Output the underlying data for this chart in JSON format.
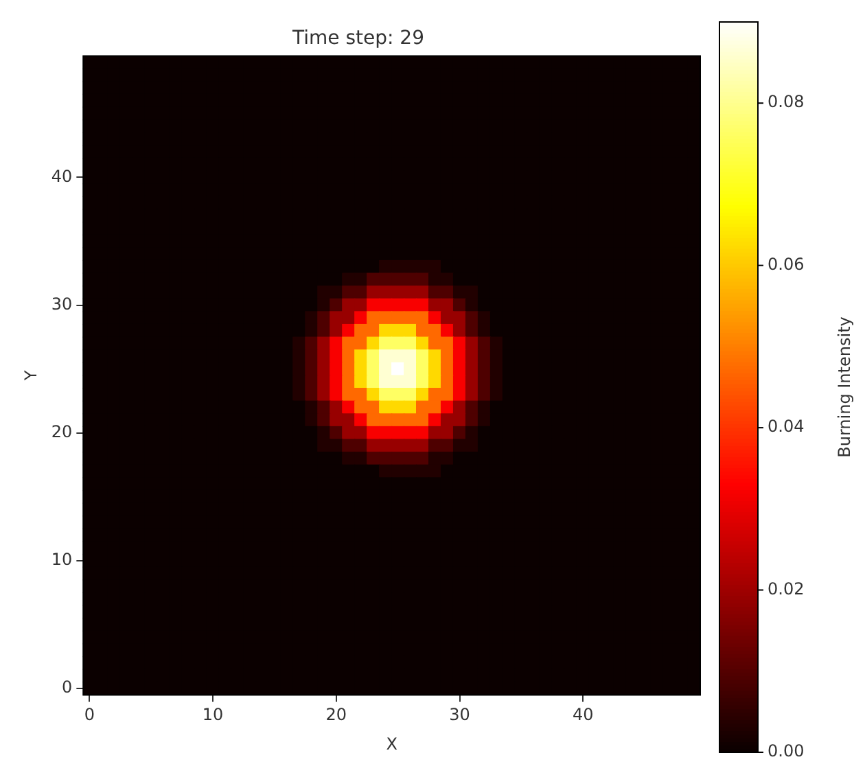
{
  "chart_data": {
    "type": "heatmap",
    "title": "Time step: 29",
    "xlabel": "X",
    "ylabel": "Y",
    "clabel": "Burning Intensity",
    "categories": [
      "0",
      null,
      null,
      null,
      null,
      null,
      null,
      null,
      null,
      null,
      "10",
      null,
      null,
      null,
      null,
      null,
      null,
      null,
      null,
      null,
      "20",
      null,
      null,
      null,
      null,
      null,
      null,
      null,
      null,
      null,
      "30",
      null,
      null,
      null,
      null,
      null,
      null,
      null,
      null,
      null,
      "40",
      null,
      null,
      null,
      null,
      null,
      null,
      null,
      null,
      null
    ],
    "y_categories": [
      null,
      null,
      null,
      null,
      null,
      null,
      null,
      null,
      null,
      "40",
      null,
      null,
      null,
      null,
      null,
      null,
      null,
      null,
      null,
      "30",
      null,
      null,
      null,
      null,
      null,
      null,
      null,
      null,
      null,
      "20",
      null,
      null,
      null,
      null,
      null,
      null,
      null,
      null,
      null,
      "10",
      null,
      null,
      null,
      null,
      null,
      null,
      null,
      null,
      null,
      "0"
    ],
    "clim": [
      0,
      0.09
    ],
    "cticks": [
      {
        "value": 0,
        "label": "0.00"
      },
      {
        "value": 0.02,
        "label": "0.02"
      },
      {
        "value": 0.04,
        "label": "0.04"
      },
      {
        "value": 0.06,
        "label": "0.06"
      },
      {
        "value": 0.08,
        "label": "0.08"
      }
    ],
    "cells": [
      [
        0,
        0,
        0,
        0,
        0,
        0,
        0,
        0,
        0,
        0,
        0,
        0,
        0,
        0,
        0,
        0,
        0,
        0,
        0,
        0,
        0,
        0,
        0,
        0,
        0,
        0,
        0,
        0,
        0,
        0,
        0,
        0,
        0,
        0,
        0,
        0,
        0,
        0,
        0,
        0,
        0,
        0,
        0,
        0,
        0,
        0,
        0,
        0,
        0,
        0
      ],
      [
        0,
        0,
        0,
        0,
        0,
        0,
        0,
        0,
        0,
        0,
        0,
        0,
        0,
        0,
        0,
        0,
        0,
        0,
        0,
        0,
        0,
        0,
        0,
        0,
        0,
        0,
        0,
        0,
        0,
        0,
        0,
        0,
        0,
        0,
        0,
        0,
        0,
        0,
        0,
        0,
        0,
        0,
        0,
        0,
        0,
        0,
        0,
        0,
        0,
        0
      ],
      [
        0,
        0,
        0,
        0,
        0,
        0,
        0,
        0,
        0,
        0,
        0,
        0,
        0,
        0,
        0,
        0,
        0,
        0,
        0,
        0,
        0,
        0,
        0,
        0,
        0,
        0,
        0,
        0,
        0,
        0,
        0,
        0,
        0,
        0,
        0,
        0,
        0,
        0,
        0,
        0,
        0,
        0,
        0,
        0,
        0,
        0,
        0,
        0,
        0,
        0
      ],
      [
        0,
        0,
        0,
        0,
        0,
        0,
        0,
        0,
        0,
        0,
        0,
        0,
        0,
        0,
        0,
        0,
        0,
        0,
        0,
        0,
        0,
        0,
        0,
        0,
        0,
        0,
        0,
        0,
        0,
        0,
        0,
        0,
        0,
        0,
        0,
        0,
        0,
        0,
        0,
        0,
        0,
        0,
        0,
        0,
        0,
        0,
        0,
        0,
        0,
        0
      ],
      [
        0,
        0,
        0,
        0,
        0,
        0,
        0,
        0,
        0,
        0,
        0,
        0,
        0,
        0,
        0,
        0,
        0,
        0,
        0,
        0,
        0,
        0,
        0,
        0,
        0,
        0,
        0,
        0,
        0,
        0,
        0,
        0,
        0,
        0,
        0,
        0,
        0,
        0,
        0,
        0,
        0,
        0,
        0,
        0,
        0,
        0,
        0,
        0,
        0,
        0
      ],
      [
        0,
        0,
        0,
        0,
        0,
        0,
        0,
        0,
        0,
        0,
        0,
        0,
        0,
        0,
        0,
        0,
        0,
        0,
        0,
        0,
        0,
        0,
        0,
        0,
        0,
        0,
        0,
        0,
        0,
        0,
        0,
        0,
        0,
        0,
        0,
        0,
        0,
        0,
        0,
        0,
        0,
        0,
        0,
        0,
        0,
        0,
        0,
        0,
        0,
        0
      ],
      [
        0,
        0,
        0,
        0,
        0,
        0,
        0,
        0,
        0,
        0,
        0,
        0,
        0,
        0,
        0,
        0,
        0,
        0,
        0,
        0,
        0,
        0,
        0,
        0,
        0,
        0,
        0,
        0,
        0,
        0,
        0,
        0,
        0,
        0,
        0,
        0,
        0,
        0,
        0,
        0,
        0,
        0,
        0,
        0,
        0,
        0,
        0,
        0,
        0,
        0
      ],
      [
        0,
        0,
        0,
        0,
        0,
        0,
        0,
        0,
        0,
        0,
        0,
        0,
        0,
        0,
        0,
        0,
        0,
        0,
        0,
        0,
        0,
        0,
        0,
        0,
        0,
        0,
        0,
        0,
        0,
        0,
        0,
        0,
        0,
        0,
        0,
        0,
        0,
        0,
        0,
        0,
        0,
        0,
        0,
        0,
        0,
        0,
        0,
        0,
        0,
        0
      ],
      [
        0,
        0,
        0,
        0,
        0,
        0,
        0,
        0,
        0,
        0,
        0,
        0,
        0,
        0,
        0,
        0,
        0,
        0,
        0,
        0,
        0,
        0,
        0,
        0,
        0,
        0,
        0,
        0,
        0,
        0,
        0,
        0,
        0,
        0,
        0,
        0,
        0,
        0,
        0,
        0,
        0,
        0,
        0,
        0,
        0,
        0,
        0,
        0,
        0,
        0
      ],
      [
        0,
        0,
        0,
        0,
        0,
        0,
        0,
        0,
        0,
        0,
        0,
        0,
        0,
        0,
        0,
        0,
        0,
        0,
        0,
        0,
        0,
        0,
        0,
        0,
        0,
        0,
        0,
        0,
        0,
        0,
        0,
        0,
        0,
        0,
        0,
        0,
        0,
        0,
        0,
        0,
        0,
        0,
        0,
        0,
        0,
        0,
        0,
        0,
        0,
        0
      ],
      [
        0,
        0,
        0,
        0,
        0,
        0,
        0,
        0,
        0,
        0,
        0,
        0,
        0,
        0,
        0,
        0,
        0,
        0,
        0,
        0,
        0,
        0,
        0,
        0,
        0,
        0,
        0,
        0,
        0,
        0,
        0,
        0,
        0,
        0,
        0,
        0,
        0,
        0,
        0,
        0,
        0,
        0,
        0,
        0,
        0,
        0,
        0,
        0,
        0,
        0
      ],
      [
        0,
        0,
        0,
        0,
        0,
        0,
        0,
        0,
        0,
        0,
        0,
        0,
        0,
        0,
        0,
        0,
        0,
        0,
        0,
        0,
        0,
        0,
        0,
        0,
        0,
        0,
        0,
        0,
        0,
        0,
        0,
        0,
        0,
        0,
        0,
        0,
        0,
        0,
        0,
        0,
        0,
        0,
        0,
        0,
        0,
        0,
        0,
        0,
        0,
        0
      ],
      [
        0,
        0,
        0,
        0,
        0,
        0,
        0,
        0,
        0,
        0,
        0,
        0,
        0,
        0,
        0,
        0,
        0,
        0,
        0,
        0,
        0,
        0,
        0,
        0,
        0,
        0,
        0,
        0,
        0,
        0,
        0,
        0,
        0,
        0,
        0,
        0,
        0,
        0,
        0,
        0,
        0,
        0,
        0,
        0,
        0,
        0,
        0,
        0,
        0,
        0
      ],
      [
        0,
        0,
        0,
        0,
        0,
        0,
        0,
        0,
        0,
        0,
        0,
        0,
        0,
        0,
        0,
        0,
        0,
        0,
        0,
        0,
        0,
        0,
        0,
        0,
        0,
        0,
        0,
        0,
        0,
        0,
        0,
        0,
        0,
        0,
        0,
        0,
        0,
        0,
        0,
        0,
        0,
        0,
        0,
        0,
        0,
        0,
        0,
        0,
        0,
        0
      ],
      [
        0,
        0,
        0,
        0,
        0,
        0,
        0,
        0,
        0,
        0,
        0,
        0,
        0,
        0,
        0,
        0,
        0,
        0,
        0,
        0,
        0,
        0,
        0,
        0,
        0,
        0,
        0,
        0,
        0,
        0,
        0,
        0,
        0,
        0,
        0,
        0,
        0,
        0,
        0,
        0,
        0,
        0,
        0,
        0,
        0,
        0,
        0,
        0,
        0,
        0
      ],
      [
        0,
        0,
        0,
        0,
        0,
        0,
        0,
        0,
        0,
        0,
        0,
        0,
        0,
        0,
        0,
        0,
        0,
        0,
        0,
        0,
        0,
        0,
        0,
        0,
        0,
        0,
        0,
        0,
        0,
        0,
        0,
        0,
        0,
        0,
        0,
        0,
        0,
        0,
        0,
        0,
        0,
        0,
        0,
        0,
        0,
        0,
        0,
        0,
        0,
        0
      ],
      [
        0,
        0,
        0,
        0,
        0,
        0,
        0,
        0,
        0,
        0,
        0,
        0,
        0,
        0,
        0,
        0,
        0,
        0,
        0,
        0,
        0,
        0,
        0,
        0,
        0.003,
        0.003,
        0.003,
        0.003,
        0.003,
        0,
        0,
        0,
        0,
        0,
        0,
        0,
        0,
        0,
        0,
        0,
        0,
        0,
        0,
        0,
        0,
        0,
        0,
        0,
        0,
        0
      ],
      [
        0,
        0,
        0,
        0,
        0,
        0,
        0,
        0,
        0,
        0,
        0,
        0,
        0,
        0,
        0,
        0,
        0,
        0,
        0,
        0,
        0,
        0.003,
        0.003,
        0.009,
        0.009,
        0.009,
        0.009,
        0.009,
        0.003,
        0.003,
        0,
        0,
        0,
        0,
        0,
        0,
        0,
        0,
        0,
        0,
        0,
        0,
        0,
        0,
        0,
        0,
        0,
        0,
        0,
        0
      ],
      [
        0,
        0,
        0,
        0,
        0,
        0,
        0,
        0,
        0,
        0,
        0,
        0,
        0,
        0,
        0,
        0,
        0,
        0,
        0,
        0.003,
        0.003,
        0.009,
        0.009,
        0.019,
        0.019,
        0.019,
        0.019,
        0.019,
        0.009,
        0.009,
        0.003,
        0.003,
        0,
        0,
        0,
        0,
        0,
        0,
        0,
        0,
        0,
        0,
        0,
        0,
        0,
        0,
        0,
        0,
        0,
        0
      ],
      [
        0,
        0,
        0,
        0,
        0,
        0,
        0,
        0,
        0,
        0,
        0,
        0,
        0,
        0,
        0,
        0,
        0,
        0,
        0,
        0.003,
        0.009,
        0.019,
        0.019,
        0.032,
        0.032,
        0.032,
        0.032,
        0.032,
        0.019,
        0.019,
        0.009,
        0.003,
        0,
        0,
        0,
        0,
        0,
        0,
        0,
        0,
        0,
        0,
        0,
        0,
        0,
        0,
        0,
        0,
        0,
        0
      ],
      [
        0,
        0,
        0,
        0,
        0,
        0,
        0,
        0,
        0,
        0,
        0,
        0,
        0,
        0,
        0,
        0,
        0,
        0,
        0.003,
        0.009,
        0.019,
        0.019,
        0.032,
        0.047,
        0.047,
        0.047,
        0.047,
        0.047,
        0.032,
        0.019,
        0.019,
        0.009,
        0.003,
        0,
        0,
        0,
        0,
        0,
        0,
        0,
        0,
        0,
        0,
        0,
        0,
        0,
        0,
        0,
        0,
        0
      ],
      [
        0,
        0,
        0,
        0,
        0,
        0,
        0,
        0,
        0,
        0,
        0,
        0,
        0,
        0,
        0,
        0,
        0,
        0,
        0.003,
        0.009,
        0.019,
        0.032,
        0.047,
        0.047,
        0.062,
        0.062,
        0.062,
        0.047,
        0.047,
        0.032,
        0.019,
        0.009,
        0.003,
        0,
        0,
        0,
        0,
        0,
        0,
        0,
        0,
        0,
        0,
        0,
        0,
        0,
        0,
        0,
        0,
        0
      ],
      [
        0,
        0,
        0,
        0,
        0,
        0,
        0,
        0,
        0,
        0,
        0,
        0,
        0,
        0,
        0,
        0,
        0,
        0.003,
        0.009,
        0.019,
        0.032,
        0.047,
        0.047,
        0.062,
        0.076,
        0.076,
        0.076,
        0.062,
        0.047,
        0.047,
        0.032,
        0.019,
        0.009,
        0.003,
        0,
        0,
        0,
        0,
        0,
        0,
        0,
        0,
        0,
        0,
        0,
        0,
        0,
        0,
        0,
        0
      ],
      [
        0,
        0,
        0,
        0,
        0,
        0,
        0,
        0,
        0,
        0,
        0,
        0,
        0,
        0,
        0,
        0,
        0,
        0.003,
        0.009,
        0.019,
        0.032,
        0.047,
        0.062,
        0.076,
        0.086,
        0.086,
        0.086,
        0.076,
        0.062,
        0.047,
        0.032,
        0.019,
        0.009,
        0.003,
        0,
        0,
        0,
        0,
        0,
        0,
        0,
        0,
        0,
        0,
        0,
        0,
        0,
        0,
        0,
        0
      ],
      [
        0,
        0,
        0,
        0,
        0,
        0,
        0,
        0,
        0,
        0,
        0,
        0,
        0,
        0,
        0,
        0,
        0,
        0.003,
        0.009,
        0.019,
        0.032,
        0.047,
        0.062,
        0.076,
        0.086,
        0.09,
        0.086,
        0.076,
        0.062,
        0.047,
        0.032,
        0.019,
        0.009,
        0.003,
        0,
        0,
        0,
        0,
        0,
        0,
        0,
        0,
        0,
        0,
        0,
        0,
        0,
        0,
        0,
        0
      ],
      [
        0,
        0,
        0,
        0,
        0,
        0,
        0,
        0,
        0,
        0,
        0,
        0,
        0,
        0,
        0,
        0,
        0,
        0.003,
        0.009,
        0.019,
        0.032,
        0.047,
        0.062,
        0.076,
        0.086,
        0.086,
        0.086,
        0.076,
        0.062,
        0.047,
        0.032,
        0.019,
        0.009,
        0.003,
        0,
        0,
        0,
        0,
        0,
        0,
        0,
        0,
        0,
        0,
        0,
        0,
        0,
        0,
        0,
        0
      ],
      [
        0,
        0,
        0,
        0,
        0,
        0,
        0,
        0,
        0,
        0,
        0,
        0,
        0,
        0,
        0,
        0,
        0,
        0.003,
        0.009,
        0.019,
        0.032,
        0.047,
        0.047,
        0.062,
        0.076,
        0.076,
        0.076,
        0.062,
        0.047,
        0.047,
        0.032,
        0.019,
        0.009,
        0.003,
        0,
        0,
        0,
        0,
        0,
        0,
        0,
        0,
        0,
        0,
        0,
        0,
        0,
        0,
        0,
        0
      ],
      [
        0,
        0,
        0,
        0,
        0,
        0,
        0,
        0,
        0,
        0,
        0,
        0,
        0,
        0,
        0,
        0,
        0,
        0,
        0.003,
        0.009,
        0.019,
        0.032,
        0.047,
        0.047,
        0.062,
        0.062,
        0.062,
        0.047,
        0.047,
        0.032,
        0.019,
        0.009,
        0.003,
        0,
        0,
        0,
        0,
        0,
        0,
        0,
        0,
        0,
        0,
        0,
        0,
        0,
        0,
        0,
        0,
        0
      ],
      [
        0,
        0,
        0,
        0,
        0,
        0,
        0,
        0,
        0,
        0,
        0,
        0,
        0,
        0,
        0,
        0,
        0,
        0,
        0.003,
        0.009,
        0.019,
        0.019,
        0.032,
        0.047,
        0.047,
        0.047,
        0.047,
        0.047,
        0.032,
        0.019,
        0.019,
        0.009,
        0.003,
        0,
        0,
        0,
        0,
        0,
        0,
        0,
        0,
        0,
        0,
        0,
        0,
        0,
        0,
        0,
        0,
        0
      ],
      [
        0,
        0,
        0,
        0,
        0,
        0,
        0,
        0,
        0,
        0,
        0,
        0,
        0,
        0,
        0,
        0,
        0,
        0,
        0,
        0.003,
        0.009,
        0.019,
        0.019,
        0.032,
        0.032,
        0.032,
        0.032,
        0.032,
        0.019,
        0.019,
        0.009,
        0.003,
        0,
        0,
        0,
        0,
        0,
        0,
        0,
        0,
        0,
        0,
        0,
        0,
        0,
        0,
        0,
        0,
        0,
        0
      ],
      [
        0,
        0,
        0,
        0,
        0,
        0,
        0,
        0,
        0,
        0,
        0,
        0,
        0,
        0,
        0,
        0,
        0,
        0,
        0,
        0.003,
        0.003,
        0.009,
        0.009,
        0.019,
        0.019,
        0.019,
        0.019,
        0.019,
        0.009,
        0.009,
        0.003,
        0.003,
        0,
        0,
        0,
        0,
        0,
        0,
        0,
        0,
        0,
        0,
        0,
        0,
        0,
        0,
        0,
        0,
        0,
        0
      ],
      [
        0,
        0,
        0,
        0,
        0,
        0,
        0,
        0,
        0,
        0,
        0,
        0,
        0,
        0,
        0,
        0,
        0,
        0,
        0,
        0,
        0,
        0.003,
        0.003,
        0.009,
        0.009,
        0.009,
        0.009,
        0.009,
        0.003,
        0.003,
        0,
        0,
        0,
        0,
        0,
        0,
        0,
        0,
        0,
        0,
        0,
        0,
        0,
        0,
        0,
        0,
        0,
        0,
        0,
        0
      ],
      [
        0,
        0,
        0,
        0,
        0,
        0,
        0,
        0,
        0,
        0,
        0,
        0,
        0,
        0,
        0,
        0,
        0,
        0,
        0,
        0,
        0,
        0,
        0,
        0,
        0.003,
        0.003,
        0.003,
        0.003,
        0.003,
        0,
        0,
        0,
        0,
        0,
        0,
        0,
        0,
        0,
        0,
        0,
        0,
        0,
        0,
        0,
        0,
        0,
        0,
        0,
        0,
        0
      ],
      [
        0,
        0,
        0,
        0,
        0,
        0,
        0,
        0,
        0,
        0,
        0,
        0,
        0,
        0,
        0,
        0,
        0,
        0,
        0,
        0,
        0,
        0,
        0,
        0,
        0,
        0,
        0,
        0,
        0,
        0,
        0,
        0,
        0,
        0,
        0,
        0,
        0,
        0,
        0,
        0,
        0,
        0,
        0,
        0,
        0,
        0,
        0,
        0,
        0,
        0
      ],
      [
        0,
        0,
        0,
        0,
        0,
        0,
        0,
        0,
        0,
        0,
        0,
        0,
        0,
        0,
        0,
        0,
        0,
        0,
        0,
        0,
        0,
        0,
        0,
        0,
        0,
        0,
        0,
        0,
        0,
        0,
        0,
        0,
        0,
        0,
        0,
        0,
        0,
        0,
        0,
        0,
        0,
        0,
        0,
        0,
        0,
        0,
        0,
        0,
        0,
        0
      ],
      [
        0,
        0,
        0,
        0,
        0,
        0,
        0,
        0,
        0,
        0,
        0,
        0,
        0,
        0,
        0,
        0,
        0,
        0,
        0,
        0,
        0,
        0,
        0,
        0,
        0,
        0,
        0,
        0,
        0,
        0,
        0,
        0,
        0,
        0,
        0,
        0,
        0,
        0,
        0,
        0,
        0,
        0,
        0,
        0,
        0,
        0,
        0,
        0,
        0,
        0
      ],
      [
        0,
        0,
        0,
        0,
        0,
        0,
        0,
        0,
        0,
        0,
        0,
        0,
        0,
        0,
        0,
        0,
        0,
        0,
        0,
        0,
        0,
        0,
        0,
        0,
        0,
        0,
        0,
        0,
        0,
        0,
        0,
        0,
        0,
        0,
        0,
        0,
        0,
        0,
        0,
        0,
        0,
        0,
        0,
        0,
        0,
        0,
        0,
        0,
        0,
        0
      ],
      [
        0,
        0,
        0,
        0,
        0,
        0,
        0,
        0,
        0,
        0,
        0,
        0,
        0,
        0,
        0,
        0,
        0,
        0,
        0,
        0,
        0,
        0,
        0,
        0,
        0,
        0,
        0,
        0,
        0,
        0,
        0,
        0,
        0,
        0,
        0,
        0,
        0,
        0,
        0,
        0,
        0,
        0,
        0,
        0,
        0,
        0,
        0,
        0,
        0,
        0
      ],
      [
        0,
        0,
        0,
        0,
        0,
        0,
        0,
        0,
        0,
        0,
        0,
        0,
        0,
        0,
        0,
        0,
        0,
        0,
        0,
        0,
        0,
        0,
        0,
        0,
        0,
        0,
        0,
        0,
        0,
        0,
        0,
        0,
        0,
        0,
        0,
        0,
        0,
        0,
        0,
        0,
        0,
        0,
        0,
        0,
        0,
        0,
        0,
        0,
        0,
        0
      ],
      [
        0,
        0,
        0,
        0,
        0,
        0,
        0,
        0,
        0,
        0,
        0,
        0,
        0,
        0,
        0,
        0,
        0,
        0,
        0,
        0,
        0,
        0,
        0,
        0,
        0,
        0,
        0,
        0,
        0,
        0,
        0,
        0,
        0,
        0,
        0,
        0,
        0,
        0,
        0,
        0,
        0,
        0,
        0,
        0,
        0,
        0,
        0,
        0,
        0,
        0
      ],
      [
        0,
        0,
        0,
        0,
        0,
        0,
        0,
        0,
        0,
        0,
        0,
        0,
        0,
        0,
        0,
        0,
        0,
        0,
        0,
        0,
        0,
        0,
        0,
        0,
        0,
        0,
        0,
        0,
        0,
        0,
        0,
        0,
        0,
        0,
        0,
        0,
        0,
        0,
        0,
        0,
        0,
        0,
        0,
        0,
        0,
        0,
        0,
        0,
        0,
        0
      ],
      [
        0,
        0,
        0,
        0,
        0,
        0,
        0,
        0,
        0,
        0,
        0,
        0,
        0,
        0,
        0,
        0,
        0,
        0,
        0,
        0,
        0,
        0,
        0,
        0,
        0,
        0,
        0,
        0,
        0,
        0,
        0,
        0,
        0,
        0,
        0,
        0,
        0,
        0,
        0,
        0,
        0,
        0,
        0,
        0,
        0,
        0,
        0,
        0,
        0,
        0
      ],
      [
        0,
        0,
        0,
        0,
        0,
        0,
        0,
        0,
        0,
        0,
        0,
        0,
        0,
        0,
        0,
        0,
        0,
        0,
        0,
        0,
        0,
        0,
        0,
        0,
        0,
        0,
        0,
        0,
        0,
        0,
        0,
        0,
        0,
        0,
        0,
        0,
        0,
        0,
        0,
        0,
        0,
        0,
        0,
        0,
        0,
        0,
        0,
        0,
        0,
        0
      ],
      [
        0,
        0,
        0,
        0,
        0,
        0,
        0,
        0,
        0,
        0,
        0,
        0,
        0,
        0,
        0,
        0,
        0,
        0,
        0,
        0,
        0,
        0,
        0,
        0,
        0,
        0,
        0,
        0,
        0,
        0,
        0,
        0,
        0,
        0,
        0,
        0,
        0,
        0,
        0,
        0,
        0,
        0,
        0,
        0,
        0,
        0,
        0,
        0,
        0,
        0
      ],
      [
        0,
        0,
        0,
        0,
        0,
        0,
        0,
        0,
        0,
        0,
        0,
        0,
        0,
        0,
        0,
        0,
        0,
        0,
        0,
        0,
        0,
        0,
        0,
        0,
        0,
        0,
        0,
        0,
        0,
        0,
        0,
        0,
        0,
        0,
        0,
        0,
        0,
        0,
        0,
        0,
        0,
        0,
        0,
        0,
        0,
        0,
        0,
        0,
        0,
        0
      ],
      [
        0,
        0,
        0,
        0,
        0,
        0,
        0,
        0,
        0,
        0,
        0,
        0,
        0,
        0,
        0,
        0,
        0,
        0,
        0,
        0,
        0,
        0,
        0,
        0,
        0,
        0,
        0,
        0,
        0,
        0,
        0,
        0,
        0,
        0,
        0,
        0,
        0,
        0,
        0,
        0,
        0,
        0,
        0,
        0,
        0,
        0,
        0,
        0,
        0,
        0
      ],
      [
        0,
        0,
        0,
        0,
        0,
        0,
        0,
        0,
        0,
        0,
        0,
        0,
        0,
        0,
        0,
        0,
        0,
        0,
        0,
        0,
        0,
        0,
        0,
        0,
        0,
        0,
        0,
        0,
        0,
        0,
        0,
        0,
        0,
        0,
        0,
        0,
        0,
        0,
        0,
        0,
        0,
        0,
        0,
        0,
        0,
        0,
        0,
        0,
        0,
        0
      ],
      [
        0,
        0,
        0,
        0,
        0,
        0,
        0,
        0,
        0,
        0,
        0,
        0,
        0,
        0,
        0,
        0,
        0,
        0,
        0,
        0,
        0,
        0,
        0,
        0,
        0,
        0,
        0,
        0,
        0,
        0,
        0,
        0,
        0,
        0,
        0,
        0,
        0,
        0,
        0,
        0,
        0,
        0,
        0,
        0,
        0,
        0,
        0,
        0,
        0,
        0
      ],
      [
        0,
        0,
        0,
        0,
        0,
        0,
        0,
        0,
        0,
        0,
        0,
        0,
        0,
        0,
        0,
        0,
        0,
        0,
        0,
        0,
        0,
        0,
        0,
        0,
        0,
        0,
        0,
        0,
        0,
        0,
        0,
        0,
        0,
        0,
        0,
        0,
        0,
        0,
        0,
        0,
        0,
        0,
        0,
        0,
        0,
        0,
        0,
        0,
        0,
        0
      ],
      [
        0,
        0,
        0,
        0,
        0,
        0,
        0,
        0,
        0,
        0,
        0,
        0,
        0,
        0,
        0,
        0,
        0,
        0,
        0,
        0,
        0,
        0,
        0,
        0,
        0,
        0,
        0,
        0,
        0,
        0,
        0,
        0,
        0,
        0,
        0,
        0,
        0,
        0,
        0,
        0,
        0,
        0,
        0,
        0,
        0,
        0,
        0,
        0,
        0,
        0
      ]
    ]
  }
}
